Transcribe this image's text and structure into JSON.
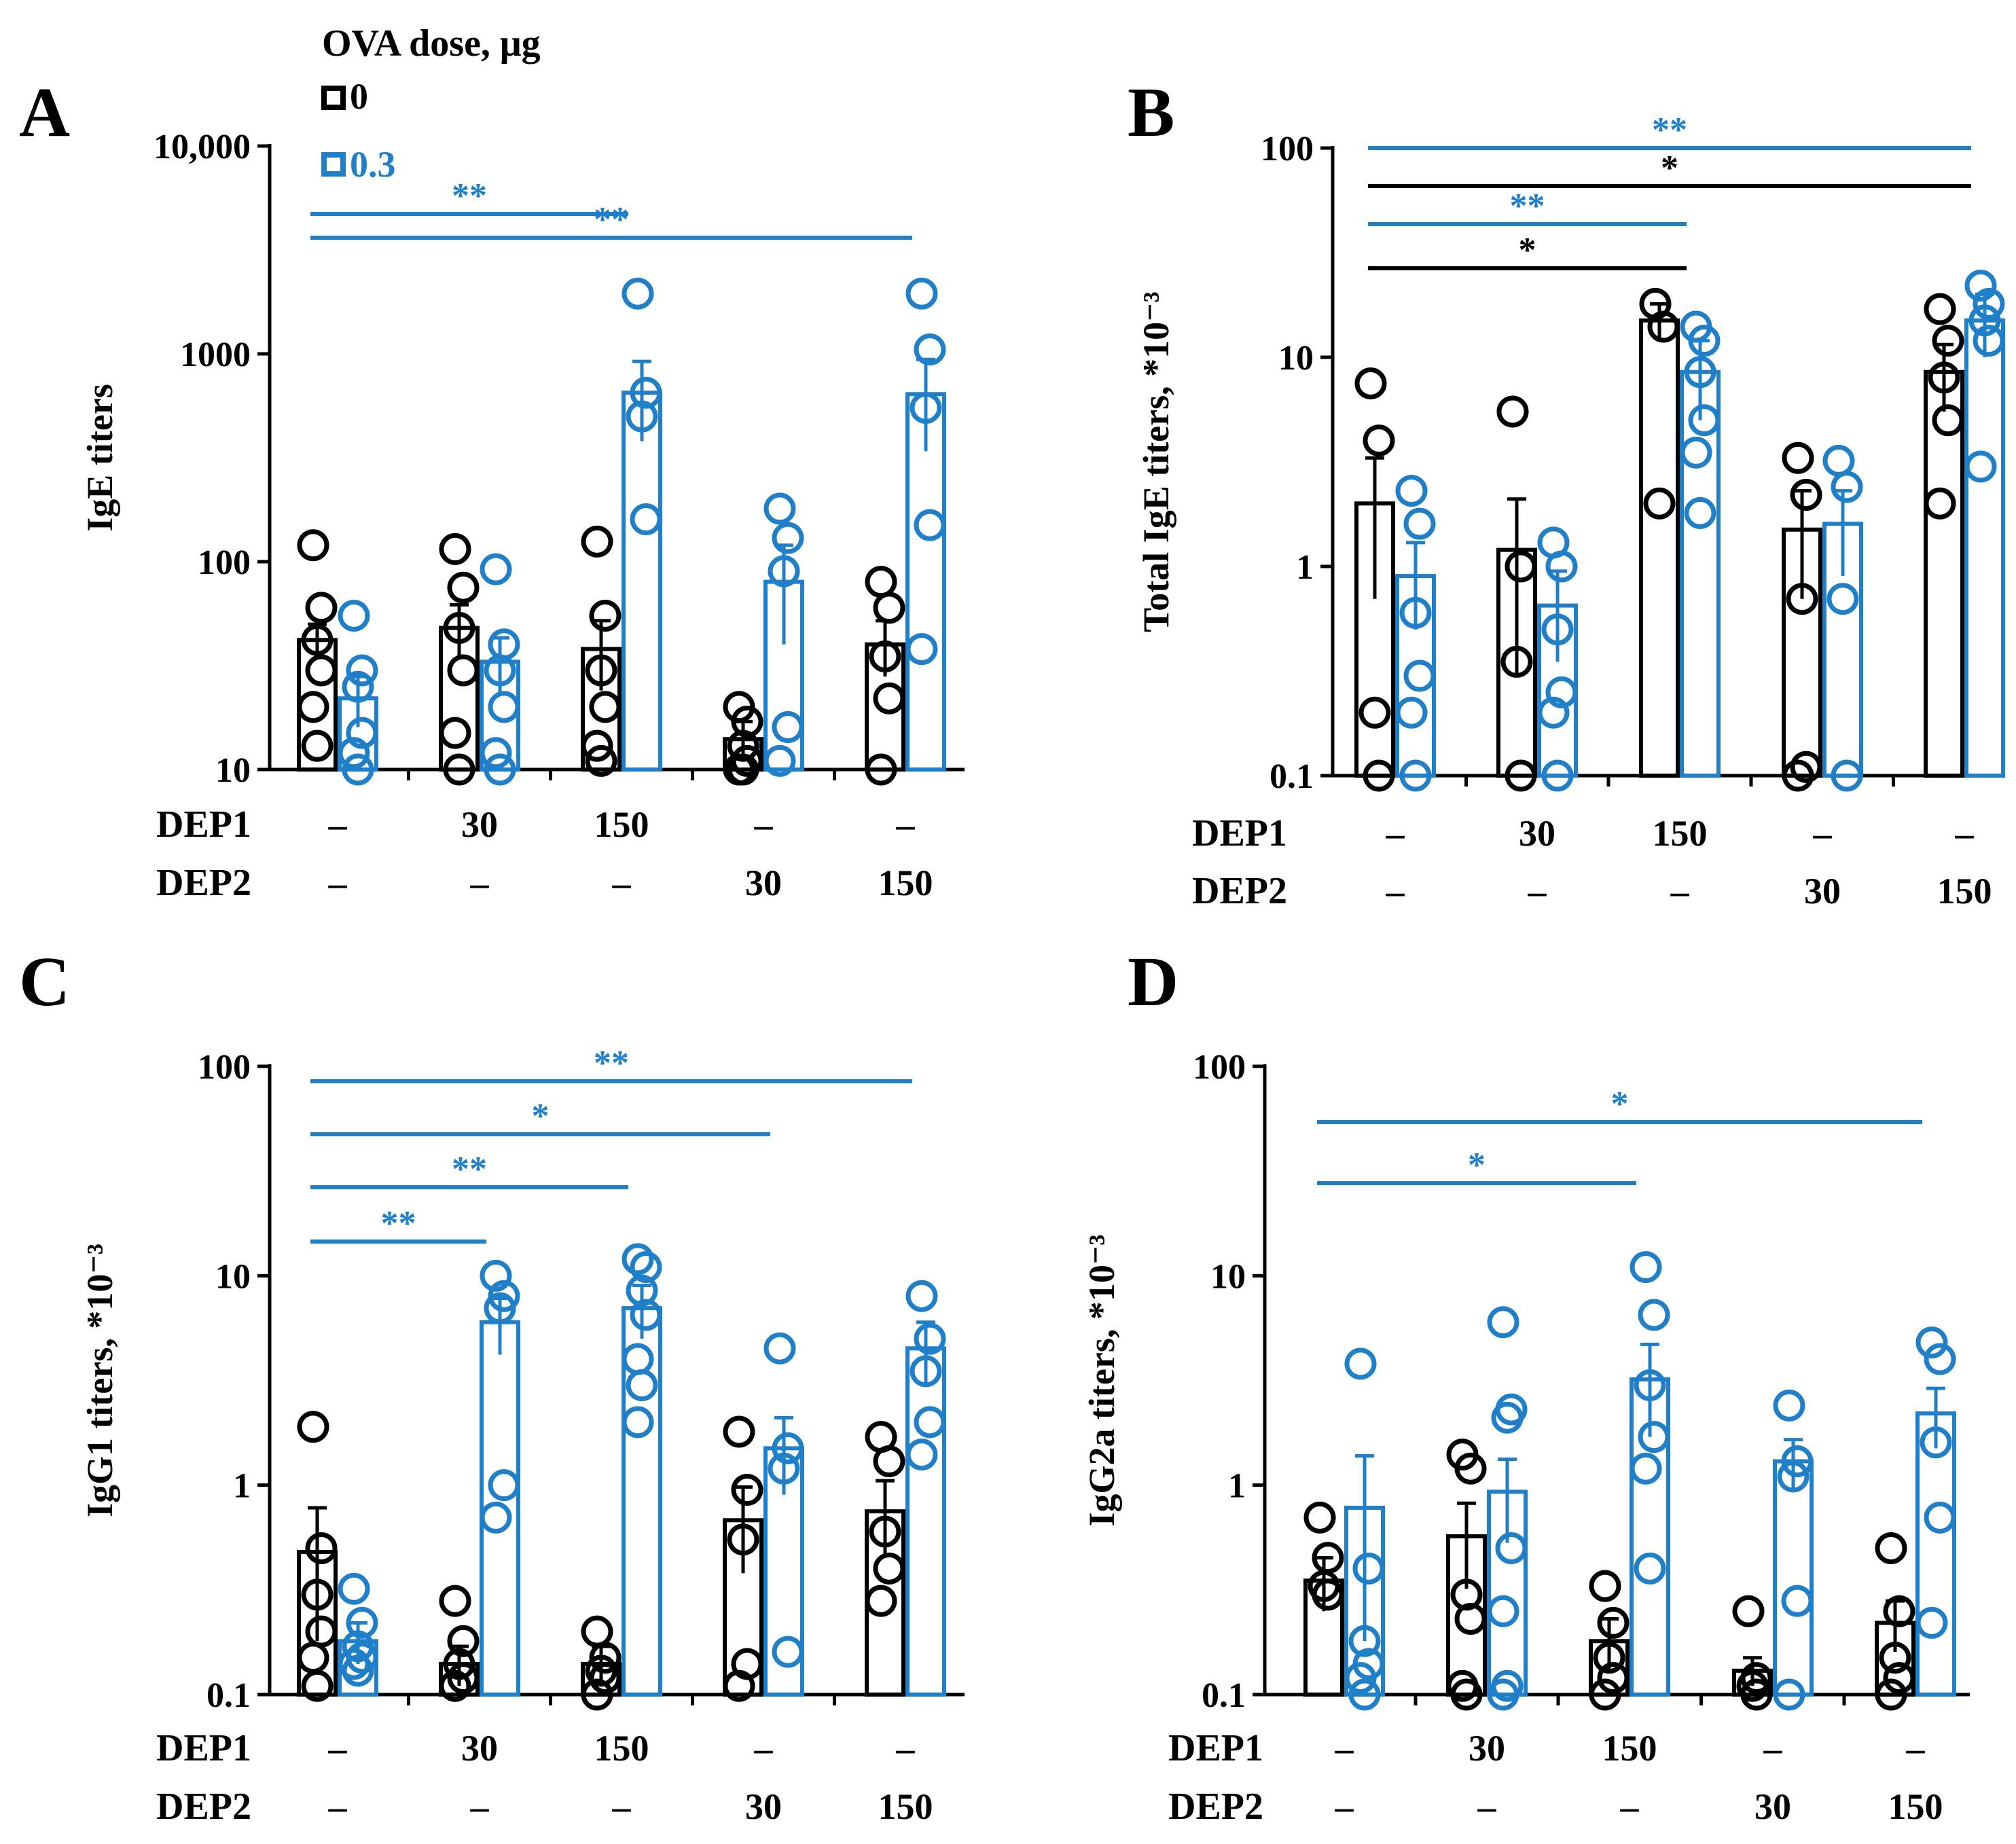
{
  "legend": {
    "title": "OVA dose, μg",
    "entries": [
      {
        "label": "0",
        "color": "#000000"
      },
      {
        "label": "0.3",
        "color": "#1f7fc9"
      }
    ]
  },
  "colors": {
    "black": "#000000",
    "blue": "#1f7fc9",
    "bar_fill": "#ffffff"
  },
  "treatment_rows": [
    "DEP1",
    "DEP2"
  ],
  "chart_data": [
    {
      "panel_label": "A",
      "type": "bar",
      "title": "",
      "ylabel": "IgE titers",
      "yscale": "log",
      "ylim": [
        10,
        10000
      ],
      "yticks": [
        10,
        100,
        1000,
        10000
      ],
      "ytick_labels": [
        "10",
        "100",
        "1000",
        "10,000"
      ],
      "groups": [
        {
          "dep1": "–",
          "dep2": "–"
        },
        {
          "dep1": "30",
          "dep2": "–"
        },
        {
          "dep1": "150",
          "dep2": "–"
        },
        {
          "dep1": "–",
          "dep2": "30"
        },
        {
          "dep1": "–",
          "dep2": "150"
        }
      ],
      "series": [
        {
          "name": "0",
          "color": "#000000",
          "means": [
            42,
            48,
            38,
            14,
            40
          ],
          "sem": [
            8,
            14,
            14,
            3,
            12
          ],
          "points": [
            [
              120,
              60,
              42,
              30,
              20,
              13
            ],
            [
              115,
              75,
              48,
              30,
              15,
              10
            ],
            [
              125,
              55,
              30,
              20,
              13,
              11
            ],
            [
              20,
              17,
              13,
              11,
              10,
              10
            ],
            [
              80,
              60,
              35,
              22,
              10
            ]
          ]
        },
        {
          "name": "0.3",
          "color": "#1f7fc9",
          "means": [
            22,
            33,
            650,
            80,
            640
          ],
          "sem": [
            6,
            10,
            270,
            40,
            300
          ],
          "points": [
            [
              55,
              30,
              25,
              15,
              12,
              10
            ],
            [
              92,
              40,
              30,
              20,
              12,
              10
            ],
            [
              1950,
              650,
              500,
              160
            ],
            [
              180,
              130,
              90,
              16,
              11
            ],
            [
              1950,
              1050,
              550,
              150,
              38
            ]
          ]
        }
      ],
      "significance": [
        {
          "from": 0,
          "to": 2,
          "label": "**",
          "color": "#1f7fc9"
        },
        {
          "from": 0,
          "to": 4,
          "label": "**",
          "color": "#1f7fc9"
        }
      ]
    },
    {
      "panel_label": "B",
      "type": "bar",
      "title": "",
      "ylabel": "Total IgE titers, *10⁻³",
      "yscale": "log",
      "ylim": [
        0.1,
        100
      ],
      "yticks": [
        0.1,
        1,
        10,
        100
      ],
      "ytick_labels": [
        "0.1",
        "1",
        "10",
        "100"
      ],
      "groups": [
        {
          "dep1": "–",
          "dep2": "–"
        },
        {
          "dep1": "30",
          "dep2": "–"
        },
        {
          "dep1": "150",
          "dep2": "–"
        },
        {
          "dep1": "–",
          "dep2": "30"
        },
        {
          "dep1": "–",
          "dep2": "150"
        }
      ],
      "series": [
        {
          "name": "0",
          "color": "#000000",
          "means": [
            2.0,
            1.2,
            15,
            1.5,
            8.5
          ],
          "sem": [
            1.3,
            0.9,
            3,
            0.8,
            3
          ],
          "points": [
            [
              7.5,
              4,
              0.2,
              0.1
            ],
            [
              5.5,
              1.0,
              0.35,
              0.1
            ],
            [
              18,
              14,
              2.0
            ],
            [
              3.3,
              2.2,
              0.7,
              0.11,
              0.1
            ],
            [
              17,
              12,
              8,
              5,
              2.0
            ]
          ]
        },
        {
          "name": "0.3",
          "color": "#1f7fc9",
          "means": [
            0.9,
            0.65,
            8.5,
            1.6,
            15
          ],
          "sem": [
            0.4,
            0.3,
            3.5,
            0.7,
            5
          ],
          "points": [
            [
              2.3,
              1.6,
              0.6,
              0.3,
              0.2,
              0.1
            ],
            [
              1.3,
              1.0,
              0.5,
              0.25,
              0.2,
              0.1
            ],
            [
              14,
              12,
              8.5,
              5,
              3.5,
              1.8
            ],
            [
              3.2,
              2.4,
              0.7,
              0.1
            ],
            [
              22,
              18,
              15,
              12,
              3.0
            ]
          ]
        }
      ],
      "significance": [
        {
          "from": 0,
          "to": 4,
          "label": "**",
          "color": "#1f7fc9"
        },
        {
          "from": 0,
          "to": 4,
          "label": "*",
          "color": "#000000"
        },
        {
          "from": 0,
          "to": 2,
          "label": "**",
          "color": "#1f7fc9"
        },
        {
          "from": 0,
          "to": 2,
          "label": "*",
          "color": "#000000"
        }
      ]
    },
    {
      "panel_label": "C",
      "type": "bar",
      "title": "",
      "ylabel": "IgG1 titers, *10⁻³",
      "yscale": "log",
      "ylim": [
        0.1,
        100
      ],
      "yticks": [
        0.1,
        1,
        10,
        100
      ],
      "ytick_labels": [
        "0.1",
        "1",
        "10",
        "100"
      ],
      "groups": [
        {
          "dep1": "–",
          "dep2": "–"
        },
        {
          "dep1": "30",
          "dep2": "–"
        },
        {
          "dep1": "150",
          "dep2": "–"
        },
        {
          "dep1": "–",
          "dep2": "30"
        },
        {
          "dep1": "–",
          "dep2": "150"
        }
      ],
      "series": [
        {
          "name": "0",
          "color": "#000000",
          "means": [
            0.48,
            0.14,
            0.14,
            0.68,
            0.75
          ],
          "sem": [
            0.3,
            0.03,
            0.03,
            0.3,
            0.3
          ],
          "points": [
            [
              1.9,
              0.5,
              0.3,
              0.2,
              0.15,
              0.11
            ],
            [
              0.28,
              0.18,
              0.14,
              0.12,
              0.11
            ],
            [
              0.2,
              0.15,
              0.13,
              0.12,
              0.1
            ],
            [
              1.8,
              0.95,
              0.55,
              0.14,
              0.11
            ],
            [
              1.7,
              1.3,
              0.6,
              0.4,
              0.28
            ]
          ]
        },
        {
          "name": "0.3",
          "color": "#1f7fc9",
          "means": [
            0.18,
            6.0,
            7.0,
            1.5,
            4.5
          ],
          "sem": [
            0.04,
            1.8,
            2.0,
            0.6,
            1.5
          ],
          "points": [
            [
              0.32,
              0.22,
              0.17,
              0.15,
              0.14,
              0.13
            ],
            [
              10,
              8,
              7,
              1.0,
              0.7
            ],
            [
              12,
              11,
              8.5,
              6.5,
              4,
              3,
              2.0
            ],
            [
              4.5,
              1.5,
              1.2,
              0.16
            ],
            [
              8,
              5,
              3.5,
              2.0,
              1.4
            ]
          ]
        }
      ],
      "significance": [
        {
          "from": 0,
          "to": 4,
          "label": "**",
          "color": "#1f7fc9"
        },
        {
          "from": 0,
          "to": 3,
          "label": "*",
          "color": "#1f7fc9"
        },
        {
          "from": 0,
          "to": 2,
          "label": "**",
          "color": "#1f7fc9"
        },
        {
          "from": 0,
          "to": 1,
          "label": "**",
          "color": "#1f7fc9"
        }
      ]
    },
    {
      "panel_label": "D",
      "type": "bar",
      "title": "",
      "ylabel": "IgG2a titers, *10⁻³",
      "yscale": "log",
      "ylim": [
        0.1,
        100
      ],
      "yticks": [
        0.1,
        1,
        10,
        100
      ],
      "ytick_labels": [
        "0.1",
        "1",
        "10",
        "100"
      ],
      "groups": [
        {
          "dep1": "–",
          "dep2": "–"
        },
        {
          "dep1": "30",
          "dep2": "–"
        },
        {
          "dep1": "150",
          "dep2": "–"
        },
        {
          "dep1": "–",
          "dep2": "30"
        },
        {
          "dep1": "–",
          "dep2": "150"
        }
      ],
      "series": [
        {
          "name": "0",
          "color": "#000000",
          "means": [
            0.35,
            0.57,
            0.18,
            0.13,
            0.22
          ],
          "sem": [
            0.1,
            0.25,
            0.05,
            0.02,
            0.06
          ],
          "points": [
            [
              0.7,
              0.45,
              0.33,
              0.3
            ],
            [
              1.4,
              1.2,
              0.3,
              0.23,
              0.11,
              0.1
            ],
            [
              0.33,
              0.22,
              0.15,
              0.12,
              0.1
            ],
            [
              0.25,
              0.12,
              0.11,
              0.1
            ],
            [
              0.5,
              0.25,
              0.15,
              0.12,
              0.1
            ]
          ]
        },
        {
          "name": "0.3",
          "color": "#1f7fc9",
          "means": [
            0.78,
            0.93,
            3.2,
            1.3,
            2.2
          ],
          "sem": [
            0.6,
            0.4,
            1.5,
            0.35,
            0.7
          ],
          "points": [
            [
              3.8,
              0.4,
              0.18,
              0.14,
              0.12,
              0.1
            ],
            [
              6,
              2.3,
              2.1,
              0.5,
              0.25,
              0.11,
              0.1
            ],
            [
              11,
              6.5,
              3,
              1.7,
              1.2,
              0.4
            ],
            [
              2.4,
              1.3,
              1.1,
              0.28,
              0.1
            ],
            [
              4.8,
              4,
              1.6,
              0.7,
              0.22
            ]
          ]
        }
      ],
      "significance": [
        {
          "from": 0,
          "to": 4,
          "label": "*",
          "color": "#1f7fc9"
        },
        {
          "from": 0,
          "to": 2,
          "label": "*",
          "color": "#1f7fc9"
        }
      ]
    }
  ]
}
